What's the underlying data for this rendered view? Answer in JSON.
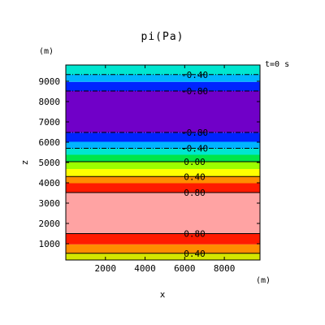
{
  "chart_data": {
    "type": "heatmap",
    "title": "pi(Pa)",
    "xlabel": "x",
    "ylabel": "z",
    "x_unit": "(m)",
    "y_unit": "(m)",
    "time_label": "t=0  s",
    "xlim": [
      0,
      9800
    ],
    "ylim": [
      200,
      9800
    ],
    "x_ticks": [
      2000,
      4000,
      6000,
      8000
    ],
    "y_ticks": [
      1000,
      2000,
      3000,
      4000,
      5000,
      6000,
      7000,
      8000,
      9000
    ],
    "bands": [
      {
        "z0": 200,
        "z1": 530,
        "color": "#d4e600"
      },
      {
        "z0": 530,
        "z1": 970,
        "color": "#ff8c00"
      },
      {
        "z0": 970,
        "z1": 1500,
        "color": "#ff1a00"
      },
      {
        "z0": 1500,
        "z1": 3520,
        "color": "#ffa3a3"
      },
      {
        "z0": 3520,
        "z1": 3980,
        "color": "#ff1a00"
      },
      {
        "z0": 3980,
        "z1": 4300,
        "color": "#ff8c00"
      },
      {
        "z0": 4300,
        "z1": 4680,
        "color": "#ffff00"
      },
      {
        "z0": 4680,
        "z1": 5030,
        "color": "#9cff00"
      },
      {
        "z0": 5030,
        "z1": 5380,
        "color": "#00e64a"
      },
      {
        "z0": 5380,
        "z1": 5680,
        "color": "#00e6d0"
      },
      {
        "z0": 5680,
        "z1": 6020,
        "color": "#00b4ff"
      },
      {
        "z0": 6020,
        "z1": 6470,
        "color": "#0024ff"
      },
      {
        "z0": 6470,
        "z1": 8520,
        "color": "#7000c8"
      },
      {
        "z0": 8520,
        "z1": 8970,
        "color": "#0024ff"
      },
      {
        "z0": 8970,
        "z1": 9320,
        "color": "#00b4ff"
      },
      {
        "z0": 9320,
        "z1": 9800,
        "color": "#00e6d0"
      }
    ],
    "contours": [
      {
        "z": 9330,
        "label": "-0.40",
        "dashed": true
      },
      {
        "z": 8520,
        "label": "-0.80",
        "dashed": true
      },
      {
        "z": 6480,
        "label": "-0.80",
        "dashed": true
      },
      {
        "z": 5700,
        "label": "-0.40",
        "dashed": true
      },
      {
        "z": 5040,
        "label": "0.00",
        "dashed": false
      },
      {
        "z": 4310,
        "label": "0.40",
        "dashed": false
      },
      {
        "z": 3520,
        "label": "0.80",
        "dashed": false
      },
      {
        "z": 1500,
        "label": "0.80",
        "dashed": false
      },
      {
        "z": 530,
        "label": "0.40",
        "dashed": false
      }
    ],
    "label_x": 6500
  }
}
